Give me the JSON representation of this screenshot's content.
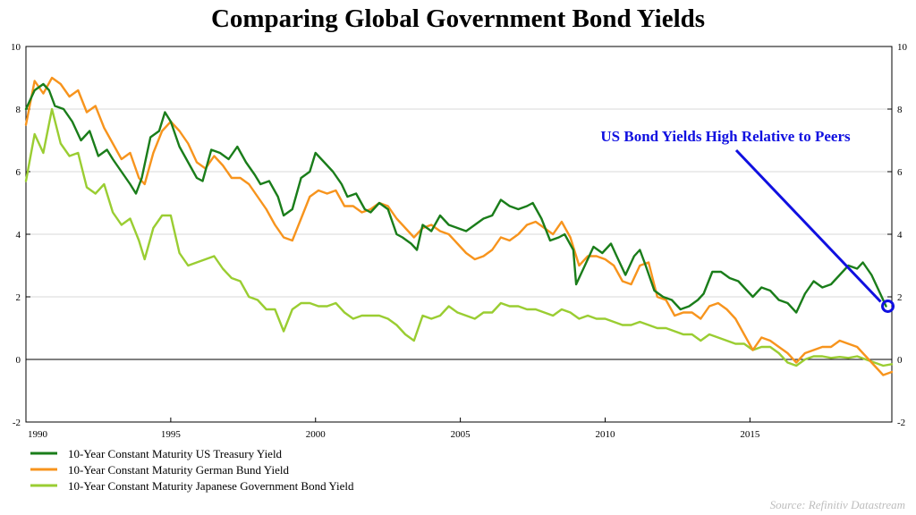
{
  "chart_data": {
    "type": "line",
    "title": "Comparing Global Government Bond Yields",
    "xlabel": "",
    "ylabel": "",
    "xlim": [
      1990,
      2019.9
    ],
    "ylim": [
      -2,
      10
    ],
    "x_ticks": [
      1990,
      1995,
      2000,
      2005,
      2010,
      2015
    ],
    "y_ticks": [
      -2,
      0,
      2,
      4,
      6,
      8,
      10
    ],
    "grid": "horizontal",
    "legend_position": "bottom-left",
    "series": [
      {
        "name": "10-Year Constant Maturity US Treasury Yield",
        "color": "#1a7d1a",
        "x": [
          1990.0,
          1990.3,
          1990.6,
          1990.8,
          1991.0,
          1991.3,
          1991.6,
          1991.9,
          1992.2,
          1992.5,
          1992.8,
          1993.0,
          1993.3,
          1993.6,
          1993.8,
          1994.0,
          1994.3,
          1994.6,
          1994.8,
          1995.0,
          1995.3,
          1995.6,
          1995.9,
          1996.1,
          1996.4,
          1996.7,
          1997.0,
          1997.3,
          1997.6,
          1997.9,
          1998.1,
          1998.4,
          1998.7,
          1998.9,
          1999.2,
          1999.5,
          1999.8,
          2000.0,
          2000.3,
          2000.6,
          2000.9,
          2001.1,
          2001.4,
          2001.7,
          2001.9,
          2002.2,
          2002.5,
          2002.8,
          2003.0,
          2003.3,
          2003.5,
          2003.7,
          2004.0,
          2004.3,
          2004.6,
          2004.9,
          2005.2,
          2005.5,
          2005.8,
          2006.1,
          2006.4,
          2006.7,
          2007.0,
          2007.3,
          2007.5,
          2007.8,
          2008.1,
          2008.4,
          2008.6,
          2008.9,
          2009.0,
          2009.3,
          2009.6,
          2009.9,
          2010.2,
          2010.4,
          2010.7,
          2011.0,
          2011.2,
          2011.4,
          2011.7,
          2012.0,
          2012.3,
          2012.6,
          2012.9,
          2013.2,
          2013.4,
          2013.7,
          2014.0,
          2014.3,
          2014.6,
          2014.9,
          2015.1,
          2015.4,
          2015.7,
          2016.0,
          2016.3,
          2016.6,
          2016.9,
          2017.2,
          2017.5,
          2017.8,
          2018.1,
          2018.4,
          2018.7,
          2018.9,
          2019.2,
          2019.5,
          2019.7
        ],
        "y": [
          8.0,
          8.6,
          8.8,
          8.6,
          8.1,
          8.0,
          7.6,
          7.0,
          7.3,
          6.5,
          6.7,
          6.4,
          6.0,
          5.6,
          5.3,
          5.8,
          7.1,
          7.3,
          7.9,
          7.6,
          6.8,
          6.3,
          5.8,
          5.7,
          6.7,
          6.6,
          6.4,
          6.8,
          6.3,
          5.9,
          5.6,
          5.7,
          5.2,
          4.6,
          4.8,
          5.8,
          6.0,
          6.6,
          6.3,
          6.0,
          5.6,
          5.2,
          5.3,
          4.8,
          4.7,
          5.0,
          4.8,
          4.0,
          3.9,
          3.7,
          3.5,
          4.3,
          4.1,
          4.6,
          4.3,
          4.2,
          4.1,
          4.3,
          4.5,
          4.6,
          5.1,
          4.9,
          4.8,
          4.9,
          5.0,
          4.5,
          3.8,
          3.9,
          4.0,
          3.5,
          2.4,
          3.0,
          3.6,
          3.4,
          3.7,
          3.3,
          2.7,
          3.3,
          3.5,
          3.0,
          2.2,
          2.0,
          1.9,
          1.6,
          1.7,
          1.9,
          2.1,
          2.8,
          2.8,
          2.6,
          2.5,
          2.2,
          2.0,
          2.3,
          2.2,
          1.9,
          1.8,
          1.5,
          2.1,
          2.5,
          2.3,
          2.4,
          2.7,
          3.0,
          2.9,
          3.1,
          2.7,
          2.1,
          1.7
        ]
      },
      {
        "name": "10-Year Constant Maturity German Bund Yield",
        "color": "#f7941d",
        "x": [
          1990.0,
          1990.3,
          1990.6,
          1990.9,
          1991.2,
          1991.5,
          1991.8,
          1992.1,
          1992.4,
          1992.7,
          1993.0,
          1993.3,
          1993.6,
          1993.9,
          1994.1,
          1994.4,
          1994.7,
          1995.0,
          1995.3,
          1995.6,
          1995.9,
          1996.2,
          1996.5,
          1996.8,
          1997.1,
          1997.4,
          1997.7,
          1998.0,
          1998.3,
          1998.6,
          1998.9,
          1999.2,
          1999.5,
          1999.8,
          2000.1,
          2000.4,
          2000.7,
          2001.0,
          2001.3,
          2001.6,
          2001.9,
          2002.2,
          2002.5,
          2002.8,
          2003.1,
          2003.4,
          2003.7,
          2004.0,
          2004.3,
          2004.6,
          2004.9,
          2005.2,
          2005.5,
          2005.8,
          2006.1,
          2006.4,
          2006.7,
          2007.0,
          2007.3,
          2007.6,
          2007.9,
          2008.2,
          2008.5,
          2008.8,
          2009.1,
          2009.4,
          2009.7,
          2010.0,
          2010.3,
          2010.6,
          2010.9,
          2011.2,
          2011.5,
          2011.8,
          2012.1,
          2012.4,
          2012.7,
          2013.0,
          2013.3,
          2013.6,
          2013.9,
          2014.2,
          2014.5,
          2014.8,
          2015.1,
          2015.4,
          2015.7,
          2016.0,
          2016.3,
          2016.6,
          2016.9,
          2017.2,
          2017.5,
          2017.8,
          2018.1,
          2018.4,
          2018.7,
          2019.0,
          2019.3,
          2019.6,
          2019.9
        ],
        "y": [
          7.5,
          8.9,
          8.5,
          9.0,
          8.8,
          8.4,
          8.6,
          7.9,
          8.1,
          7.4,
          6.9,
          6.4,
          6.6,
          5.8,
          5.6,
          6.6,
          7.3,
          7.6,
          7.3,
          6.9,
          6.3,
          6.1,
          6.5,
          6.2,
          5.8,
          5.8,
          5.6,
          5.2,
          4.8,
          4.3,
          3.9,
          3.8,
          4.5,
          5.2,
          5.4,
          5.3,
          5.4,
          4.9,
          4.9,
          4.7,
          4.8,
          5.0,
          4.9,
          4.5,
          4.2,
          3.9,
          4.2,
          4.3,
          4.1,
          4.0,
          3.7,
          3.4,
          3.2,
          3.3,
          3.5,
          3.9,
          3.8,
          4.0,
          4.3,
          4.4,
          4.2,
          4.0,
          4.4,
          3.9,
          3.0,
          3.3,
          3.3,
          3.2,
          3.0,
          2.5,
          2.4,
          3.0,
          3.1,
          2.0,
          1.9,
          1.4,
          1.5,
          1.5,
          1.3,
          1.7,
          1.8,
          1.6,
          1.3,
          0.8,
          0.3,
          0.7,
          0.6,
          0.4,
          0.2,
          -0.1,
          0.2,
          0.3,
          0.4,
          0.4,
          0.6,
          0.5,
          0.4,
          0.1,
          -0.2,
          -0.5,
          -0.4
        ]
      },
      {
        "name": "10-Year Constant Maturity Japanese Government Bond Yield",
        "color": "#9acd32",
        "x": [
          1990.0,
          1990.3,
          1990.6,
          1990.9,
          1991.2,
          1991.5,
          1991.8,
          1992.1,
          1992.4,
          1992.7,
          1993.0,
          1993.3,
          1993.6,
          1993.9,
          1994.1,
          1994.4,
          1994.7,
          1995.0,
          1995.3,
          1995.6,
          1995.9,
          1996.2,
          1996.5,
          1996.8,
          1997.1,
          1997.4,
          1997.7,
          1998.0,
          1998.3,
          1998.6,
          1998.9,
          1999.2,
          1999.5,
          1999.8,
          2000.1,
          2000.4,
          2000.7,
          2001.0,
          2001.3,
          2001.6,
          2001.9,
          2002.2,
          2002.5,
          2002.8,
          2003.1,
          2003.4,
          2003.7,
          2004.0,
          2004.3,
          2004.6,
          2004.9,
          2005.2,
          2005.5,
          2005.8,
          2006.1,
          2006.4,
          2006.7,
          2007.0,
          2007.3,
          2007.6,
          2007.9,
          2008.2,
          2008.5,
          2008.8,
          2009.1,
          2009.4,
          2009.7,
          2010.0,
          2010.3,
          2010.6,
          2010.9,
          2011.2,
          2011.5,
          2011.8,
          2012.1,
          2012.4,
          2012.7,
          2013.0,
          2013.3,
          2013.6,
          2013.9,
          2014.2,
          2014.5,
          2014.8,
          2015.1,
          2015.4,
          2015.7,
          2016.0,
          2016.3,
          2016.6,
          2016.9,
          2017.2,
          2017.5,
          2017.8,
          2018.1,
          2018.4,
          2018.7,
          2019.0,
          2019.3,
          2019.6,
          2019.9
        ],
        "y": [
          5.7,
          7.2,
          6.6,
          8.0,
          6.9,
          6.5,
          6.6,
          5.5,
          5.3,
          5.6,
          4.7,
          4.3,
          4.5,
          3.8,
          3.2,
          4.2,
          4.6,
          4.6,
          3.4,
          3.0,
          3.1,
          3.2,
          3.3,
          2.9,
          2.6,
          2.5,
          2.0,
          1.9,
          1.6,
          1.6,
          0.9,
          1.6,
          1.8,
          1.8,
          1.7,
          1.7,
          1.8,
          1.5,
          1.3,
          1.4,
          1.4,
          1.4,
          1.3,
          1.1,
          0.8,
          0.6,
          1.4,
          1.3,
          1.4,
          1.7,
          1.5,
          1.4,
          1.3,
          1.5,
          1.5,
          1.8,
          1.7,
          1.7,
          1.6,
          1.6,
          1.5,
          1.4,
          1.6,
          1.5,
          1.3,
          1.4,
          1.3,
          1.3,
          1.2,
          1.1,
          1.1,
          1.2,
          1.1,
          1.0,
          1.0,
          0.9,
          0.8,
          0.8,
          0.6,
          0.8,
          0.7,
          0.6,
          0.5,
          0.5,
          0.3,
          0.4,
          0.4,
          0.2,
          -0.1,
          -0.2,
          0.0,
          0.1,
          0.1,
          0.05,
          0.08,
          0.05,
          0.1,
          0.0,
          -0.1,
          -0.2,
          -0.15
        ]
      }
    ],
    "annotation": {
      "text": "US Bond Yields High Relative to Peers",
      "color": "#1010e0",
      "point": [
        2019.7,
        1.7
      ]
    }
  },
  "source_text": "Source: Refinitiv Datastream"
}
